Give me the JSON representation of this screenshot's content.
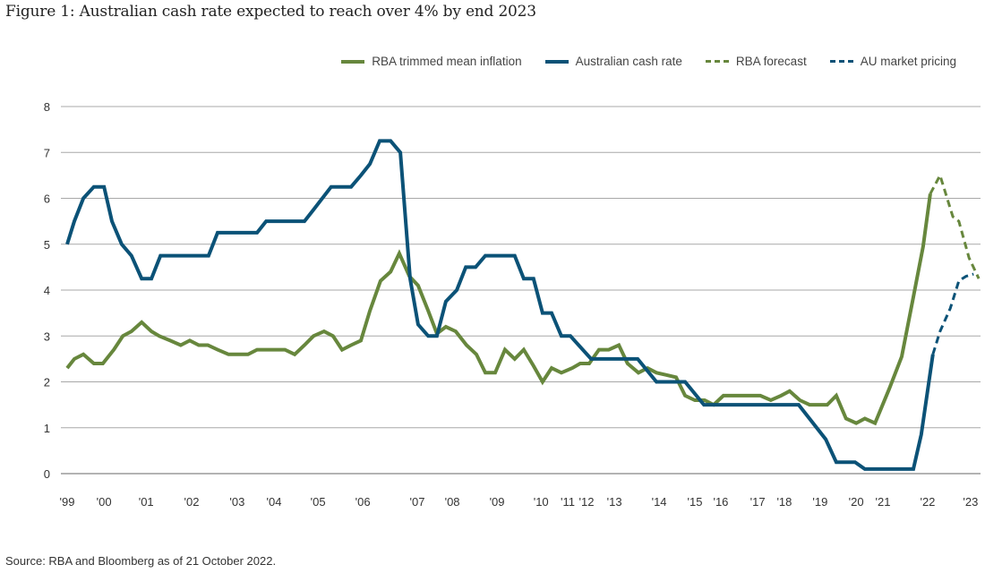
{
  "chart_data": {
    "type": "line",
    "title": "Figure 1: Australian cash rate expected to reach over 4% by end 2023",
    "source": "Source: RBA and Bloomberg as of 21 October 2022.",
    "xlabel": "",
    "ylabel": "",
    "ylim": [
      0,
      8
    ],
    "yticks": [
      0,
      1,
      2,
      3,
      4,
      5,
      6,
      7,
      8
    ],
    "xlim": [
      1998.83,
      2023.33
    ],
    "xticks": [
      {
        "label": "'99",
        "x": 1999.0
      },
      {
        "label": "'00",
        "x": 1999.98
      },
      {
        "label": "'01",
        "x": 2001.1
      },
      {
        "label": "'02",
        "x": 2002.31
      },
      {
        "label": "'03",
        "x": 2003.52
      },
      {
        "label": "'04",
        "x": 2004.5
      },
      {
        "label": "'05",
        "x": 2005.67
      },
      {
        "label": "'06",
        "x": 2006.86
      },
      {
        "label": "'07",
        "x": 2008.31
      },
      {
        "label": "'08",
        "x": 2009.24
      },
      {
        "label": "'09",
        "x": 2010.43
      },
      {
        "label": "'10",
        "x": 2011.6
      },
      {
        "label": "'11",
        "x": 2012.31
      },
      {
        "label": "'12",
        "x": 2012.81
      },
      {
        "label": "'13",
        "x": 2013.55
      },
      {
        "label": "'14",
        "x": 2014.74
      },
      {
        "label": "'15",
        "x": 2015.69
      },
      {
        "label": "'16",
        "x": 2016.38
      },
      {
        "label": "'17",
        "x": 2017.36
      },
      {
        "label": "'18",
        "x": 2018.07
      },
      {
        "label": "'19",
        "x": 2019.02
      },
      {
        "label": "'20",
        "x": 2019.98
      },
      {
        "label": "'21",
        "x": 2020.69
      },
      {
        "label": "'22",
        "x": 2021.88
      },
      {
        "label": "'23",
        "x": 2023.02
      }
    ],
    "grid": true,
    "legend_position": "top-right",
    "series": [
      {
        "name": "RBA trimmed mean inflation",
        "color": "#67873d",
        "dashed": false,
        "points": [
          [
            1999.0,
            2.3
          ],
          [
            1999.19,
            2.5
          ],
          [
            1999.43,
            2.6
          ],
          [
            1999.71,
            2.4
          ],
          [
            1999.95,
            2.4
          ],
          [
            2000.24,
            2.7
          ],
          [
            2000.48,
            3.0
          ],
          [
            2000.71,
            3.1
          ],
          [
            2000.98,
            3.3
          ],
          [
            2001.24,
            3.1
          ],
          [
            2001.45,
            3.0
          ],
          [
            2001.74,
            2.9
          ],
          [
            2002.02,
            2.8
          ],
          [
            2002.26,
            2.9
          ],
          [
            2002.5,
            2.8
          ],
          [
            2002.74,
            2.8
          ],
          [
            2003.0,
            2.7
          ],
          [
            2003.29,
            2.6
          ],
          [
            2003.81,
            2.6
          ],
          [
            2004.05,
            2.7
          ],
          [
            2004.79,
            2.7
          ],
          [
            2005.05,
            2.6
          ],
          [
            2005.31,
            2.8
          ],
          [
            2005.55,
            3.0
          ],
          [
            2005.83,
            3.1
          ],
          [
            2006.07,
            3.0
          ],
          [
            2006.31,
            2.7
          ],
          [
            2006.55,
            2.8
          ],
          [
            2006.81,
            2.9
          ],
          [
            2007.05,
            3.55
          ],
          [
            2007.33,
            4.2
          ],
          [
            2007.6,
            4.4
          ],
          [
            2007.83,
            4.8
          ],
          [
            2008.1,
            4.3
          ],
          [
            2008.33,
            4.1
          ],
          [
            2008.6,
            3.55
          ],
          [
            2008.83,
            3.05
          ],
          [
            2009.07,
            3.2
          ],
          [
            2009.33,
            3.1
          ],
          [
            2009.62,
            2.8
          ],
          [
            2009.88,
            2.6
          ],
          [
            2010.12,
            2.2
          ],
          [
            2010.38,
            2.2
          ],
          [
            2010.64,
            2.7
          ],
          [
            2010.9,
            2.5
          ],
          [
            2011.14,
            2.7
          ],
          [
            2011.4,
            2.35
          ],
          [
            2011.64,
            2.0
          ],
          [
            2011.88,
            2.3
          ],
          [
            2012.14,
            2.2
          ],
          [
            2012.43,
            2.3
          ],
          [
            2012.64,
            2.4
          ],
          [
            2012.88,
            2.4
          ],
          [
            2013.14,
            2.7
          ],
          [
            2013.4,
            2.7
          ],
          [
            2013.67,
            2.8
          ],
          [
            2013.9,
            2.4
          ],
          [
            2014.19,
            2.2
          ],
          [
            2014.43,
            2.3
          ],
          [
            2014.67,
            2.2
          ],
          [
            2014.93,
            2.15
          ],
          [
            2015.19,
            2.1
          ],
          [
            2015.43,
            1.7
          ],
          [
            2015.69,
            1.6
          ],
          [
            2015.95,
            1.6
          ],
          [
            2016.19,
            1.5
          ],
          [
            2016.45,
            1.7
          ],
          [
            2016.79,
            1.7
          ],
          [
            2017.12,
            1.7
          ],
          [
            2017.43,
            1.7
          ],
          [
            2017.71,
            1.6
          ],
          [
            2017.98,
            1.7
          ],
          [
            2018.21,
            1.8
          ],
          [
            2018.48,
            1.6
          ],
          [
            2018.74,
            1.5
          ],
          [
            2019.21,
            1.5
          ],
          [
            2019.45,
            1.7
          ],
          [
            2019.71,
            1.2
          ],
          [
            2019.98,
            1.1
          ],
          [
            2020.21,
            1.2
          ],
          [
            2020.48,
            1.1
          ],
          [
            2020.86,
            1.85
          ],
          [
            2021.19,
            2.55
          ],
          [
            2021.5,
            3.85
          ],
          [
            2021.76,
            4.95
          ],
          [
            2021.95,
            6.1
          ]
        ]
      },
      {
        "name": "Australian cash rate",
        "color": "#0b5277",
        "dashed": false,
        "points": [
          [
            1999.0,
            5.0
          ],
          [
            1999.19,
            5.5
          ],
          [
            1999.43,
            6.0
          ],
          [
            1999.71,
            6.25
          ],
          [
            1999.98,
            6.25
          ],
          [
            2000.19,
            5.5
          ],
          [
            2000.45,
            5.0
          ],
          [
            2000.71,
            4.75
          ],
          [
            2000.98,
            4.25
          ],
          [
            2001.24,
            4.25
          ],
          [
            2001.48,
            4.75
          ],
          [
            2002.76,
            4.75
          ],
          [
            2003.0,
            5.25
          ],
          [
            2004.05,
            5.25
          ],
          [
            2004.29,
            5.5
          ],
          [
            2005.31,
            5.5
          ],
          [
            2005.55,
            5.75
          ],
          [
            2006.02,
            6.25
          ],
          [
            2006.55,
            6.25
          ],
          [
            2006.81,
            6.5
          ],
          [
            2007.05,
            6.75
          ],
          [
            2007.31,
            7.25
          ],
          [
            2007.6,
            7.25
          ],
          [
            2007.86,
            7.0
          ],
          [
            2008.12,
            4.25
          ],
          [
            2008.33,
            3.25
          ],
          [
            2008.6,
            3.0
          ],
          [
            2008.83,
            3.0
          ],
          [
            2009.07,
            3.75
          ],
          [
            2009.36,
            4.0
          ],
          [
            2009.6,
            4.5
          ],
          [
            2009.86,
            4.5
          ],
          [
            2010.12,
            4.75
          ],
          [
            2010.9,
            4.75
          ],
          [
            2011.14,
            4.25
          ],
          [
            2011.4,
            4.25
          ],
          [
            2011.64,
            3.5
          ],
          [
            2011.88,
            3.5
          ],
          [
            2012.14,
            3.0
          ],
          [
            2012.38,
            3.0
          ],
          [
            2012.93,
            2.5
          ],
          [
            2014.17,
            2.5
          ],
          [
            2014.67,
            2.0
          ],
          [
            2015.43,
            2.0
          ],
          [
            2015.93,
            1.5
          ],
          [
            2018.45,
            1.5
          ],
          [
            2019.17,
            0.75
          ],
          [
            2019.45,
            0.25
          ],
          [
            2019.95,
            0.25
          ],
          [
            2020.21,
            0.1
          ],
          [
            2021.5,
            0.1
          ],
          [
            2021.71,
            0.85
          ],
          [
            2022.02,
            2.6
          ]
        ]
      },
      {
        "name": "RBA forecast",
        "color": "#67873d",
        "dashed": true,
        "points": [
          [
            2021.95,
            6.1
          ],
          [
            2022.21,
            6.5
          ],
          [
            2022.55,
            5.6
          ],
          [
            2022.71,
            5.5
          ],
          [
            2022.98,
            4.7
          ],
          [
            2023.24,
            4.25
          ]
        ]
      },
      {
        "name": "AU market pricing",
        "color": "#0b5277",
        "dashed": true,
        "points": [
          [
            2022.02,
            2.6
          ],
          [
            2022.21,
            3.1
          ],
          [
            2022.48,
            3.6
          ],
          [
            2022.71,
            4.2
          ],
          [
            2022.9,
            4.3
          ],
          [
            2023.1,
            4.35
          ]
        ]
      }
    ]
  }
}
